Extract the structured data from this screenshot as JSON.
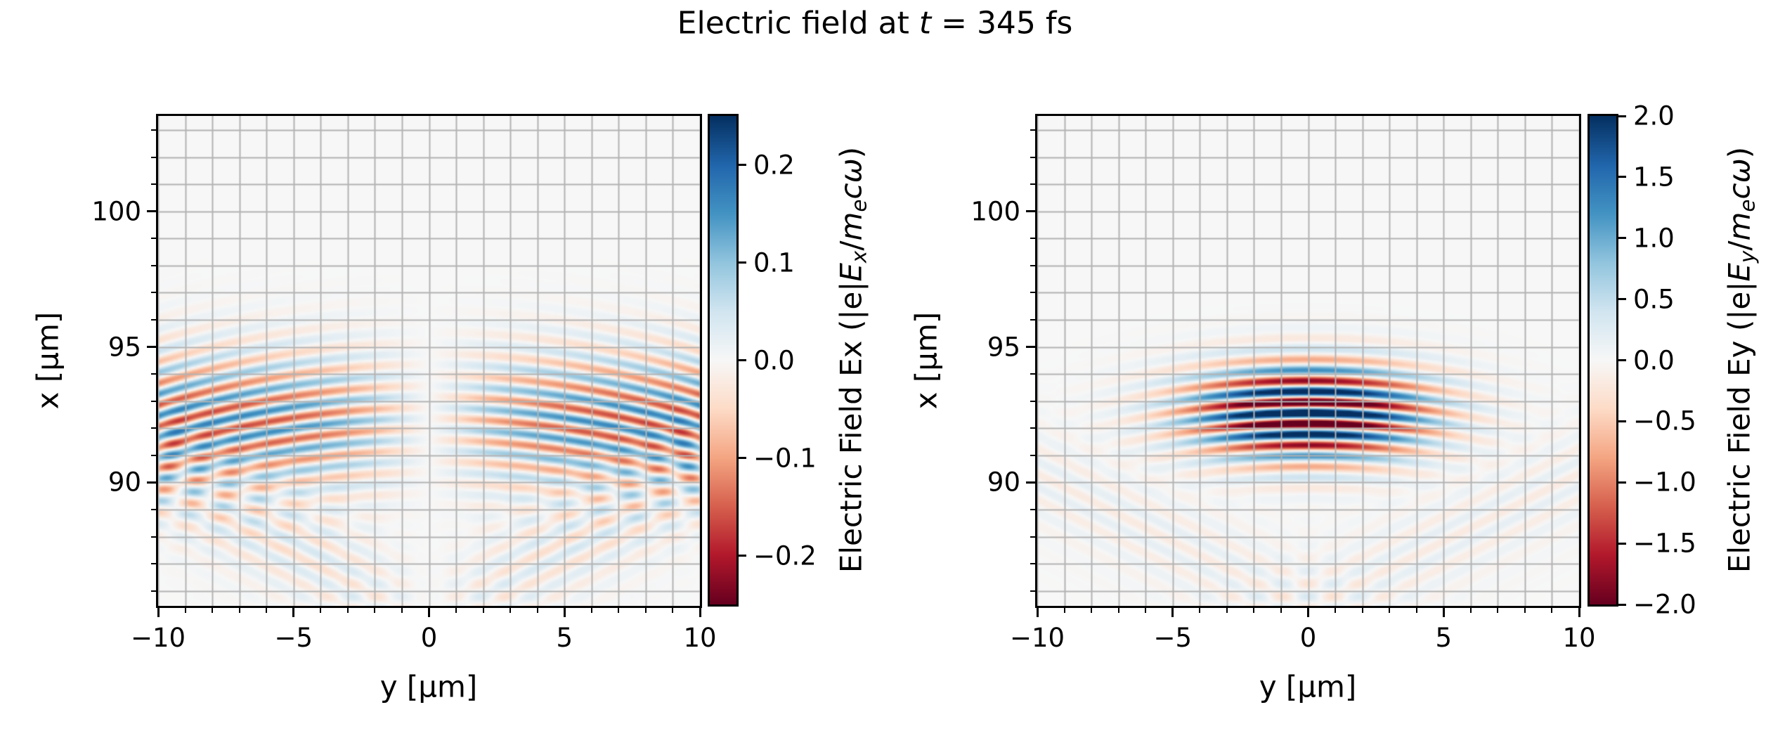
{
  "figure": {
    "title_plain": "Electric field at t = 345 fs",
    "title_rich": [
      {
        "t": "Electric field at ",
        "s": "n"
      },
      {
        "t": "t",
        "s": "i"
      },
      {
        "t": " = 345 fs",
        "s": "n"
      }
    ]
  },
  "chart_data": {
    "type": "heatmap",
    "suptitle": "Electric field at t = 345 fs",
    "time_fs": 345,
    "colormap": "RdBu",
    "colormap_anchors": [
      "#67001f",
      "#b2182b",
      "#d6604d",
      "#f4a582",
      "#fddbc7",
      "#f7f7f7",
      "#d1e5f0",
      "#92c5de",
      "#4393c3",
      "#2166ac",
      "#053061"
    ],
    "grid": {
      "show": true,
      "step_um": 1,
      "color": "#b3b3b3"
    },
    "panels": [
      {
        "id": "Ex",
        "description": "Weak transverse-antisymmetric Ex field of a focused laser pulse; node at y=0, amplitude ~±0.2, pulse centered near x≈92.5 um with faint V-shaped ripples below x≈89 um",
        "x_axis": {
          "label": "y [μm]",
          "range": [
            -10,
            10
          ],
          "major_ticks": [
            -10,
            -5,
            0,
            5,
            10
          ],
          "major_tick_labels": [
            "−10",
            "−5",
            "0",
            "5",
            "10"
          ],
          "minor_tick_step": 1
        },
        "y_axis": {
          "label": "x [μm]",
          "range": [
            85.45,
            103.52
          ],
          "major_ticks": [
            90,
            95,
            100
          ],
          "major_tick_labels": [
            "90",
            "95",
            "100"
          ],
          "minor_tick_step": 1
        },
        "colorbar": {
          "label_plain": "Electric Field Ex (|e|Ex/mecω)",
          "label_rich": [
            {
              "t": "Electric Field Ex (|e|",
              "s": "n"
            },
            {
              "t": "E",
              "s": "i"
            },
            {
              "t": "x",
              "s": "isub"
            },
            {
              "t": "/",
              "s": "n"
            },
            {
              "t": "m",
              "s": "i"
            },
            {
              "t": "e",
              "s": "isub"
            },
            {
              "t": "c",
              "s": "i"
            },
            {
              "t": "ω",
              "s": "i"
            },
            {
              "t": ")",
              "s": "n"
            }
          ],
          "vmin": -0.25,
          "vmax": 0.25,
          "tick_values": [
            0.2,
            0.1,
            0.0,
            -0.1,
            -0.2
          ],
          "tick_labels": [
            "0.2",
            "0.1",
            "0.0",
            "−0.1",
            "−0.2"
          ]
        },
        "field_model": {
          "kind": "ex_antisymmetric",
          "wavelength_um": 0.8,
          "phase_center_um": 92.55,
          "envelope_center_um": 92.2,
          "sigma_x_um": 2.5,
          "tanh_scale_um": 3.5,
          "curvature": 0.015,
          "amplitude": 0.17,
          "ripple": {
            "wavelength_um": 0.95,
            "x0_um": 85.3,
            "slope": 0.5,
            "width_um": 2.0,
            "amplitude": 0.05
          }
        }
      },
      {
        "id": "Ey",
        "description": "Main linearly-polarized Ey field; intense striped pulse centered at y=0, x≈92.5 um, wavelength ~0.8 um, curved wavefronts, saturating the ±2 color scale, faint V-shaped ripples below x≈89 um",
        "x_axis": {
          "label": "y [μm]",
          "range": [
            -10,
            10
          ],
          "major_ticks": [
            -10,
            -5,
            0,
            5,
            10
          ],
          "major_tick_labels": [
            "−10",
            "−5",
            "0",
            "5",
            "10"
          ],
          "minor_tick_step": 1
        },
        "y_axis": {
          "label": "x [μm]",
          "range": [
            85.45,
            103.52
          ],
          "major_ticks": [
            90,
            95,
            100
          ],
          "major_tick_labels": [
            "90",
            "95",
            "100"
          ],
          "minor_tick_step": 1
        },
        "colorbar": {
          "label_plain": "Electric Field Ey (|e|Ey/mecω)",
          "label_rich": [
            {
              "t": "Electric Field Ey (|e|",
              "s": "n"
            },
            {
              "t": "E",
              "s": "i"
            },
            {
              "t": "y",
              "s": "isub"
            },
            {
              "t": "/",
              "s": "n"
            },
            {
              "t": "m",
              "s": "i"
            },
            {
              "t": "e",
              "s": "isub"
            },
            {
              "t": "c",
              "s": "i"
            },
            {
              "t": "ω",
              "s": "i"
            },
            {
              "t": ")",
              "s": "n"
            }
          ],
          "vmin": -2.0,
          "vmax": 2.0,
          "tick_values": [
            2.0,
            1.5,
            1.0,
            0.5,
            0.0,
            -0.5,
            -1.0,
            -1.5,
            -2.0
          ],
          "tick_labels": [
            "2.0",
            "1.5",
            "1.0",
            "0.5",
            "0.0",
            "−0.5",
            "−1.0",
            "−1.5",
            "−2.0"
          ]
        },
        "field_model": {
          "kind": "ey_gaussian_pulse",
          "wavelength_um": 0.8,
          "phase_center_um": 92.55,
          "envelope_center_um": 92.55,
          "sigma_x_um": 1.7,
          "sigma_y_um": 4.2,
          "curvature": 0.015,
          "amplitude": 3.0,
          "ripple": {
            "wavelength_um": 0.95,
            "x0_um": 85.3,
            "slope": 0.5,
            "width_um": 2.0,
            "amplitude": 0.18
          }
        }
      }
    ]
  }
}
